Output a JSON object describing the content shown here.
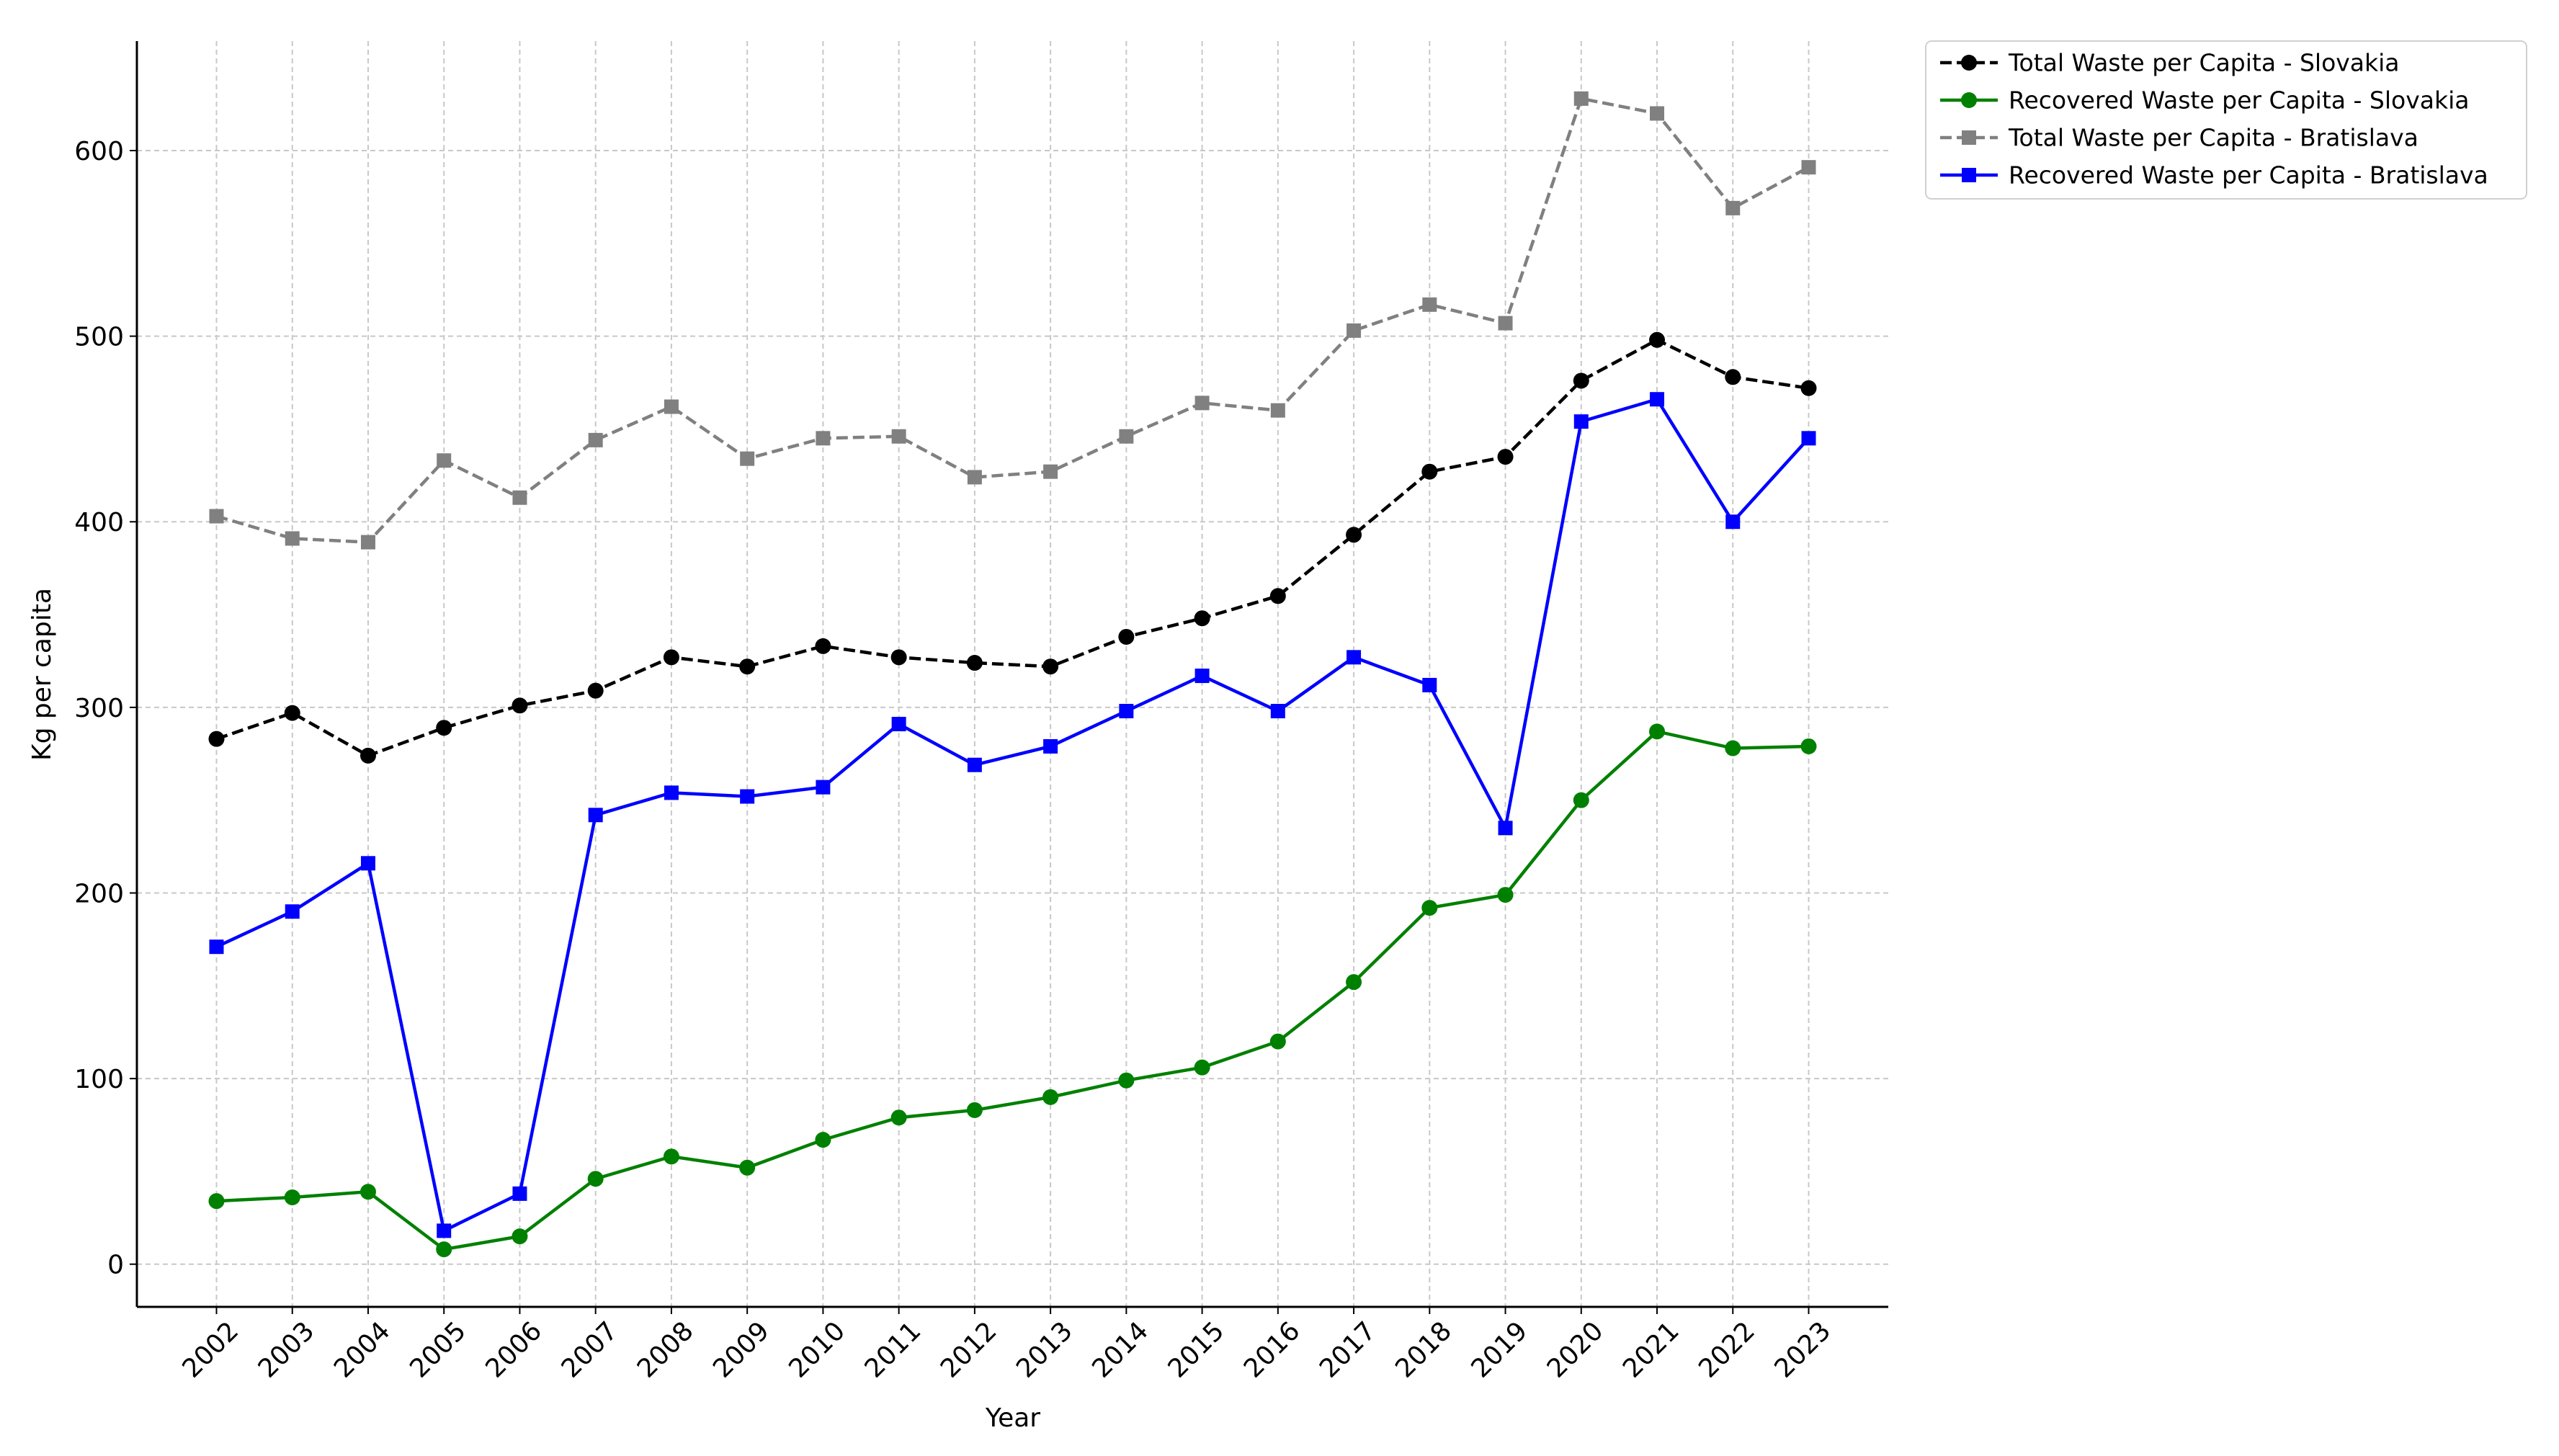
{
  "chart_data": {
    "type": "line",
    "x_label": "Year",
    "y_label": "Kg per capita",
    "x": [
      2002,
      2003,
      2004,
      2005,
      2006,
      2007,
      2008,
      2009,
      2010,
      2011,
      2012,
      2013,
      2014,
      2015,
      2016,
      2017,
      2018,
      2019,
      2020,
      2021,
      2022,
      2023
    ],
    "xlim": [
      2000.95,
      2024.05
    ],
    "xticks": [
      2002,
      2003,
      2004,
      2005,
      2006,
      2007,
      2008,
      2009,
      2010,
      2011,
      2012,
      2013,
      2014,
      2015,
      2016,
      2017,
      2018,
      2019,
      2020,
      2021,
      2022,
      2023
    ],
    "ylim": [
      -23,
      659
    ],
    "yticks": [
      0,
      100,
      200,
      300,
      400,
      500,
      600
    ],
    "grid": true,
    "legend": "outside-upper-right",
    "series": [
      {
        "name": "Total Waste per Capita - Slovakia",
        "color": "#000000",
        "linestyle": "dashed",
        "marker": "circle",
        "values": [
          283,
          297,
          274,
          289,
          301,
          309,
          327,
          322,
          333,
          327,
          324,
          322,
          338,
          348,
          360,
          393,
          427,
          435,
          476,
          498,
          478,
          472
        ]
      },
      {
        "name": "Recovered Waste per Capita - Slovakia",
        "color": "#008000",
        "linestyle": "solid",
        "marker": "circle",
        "values": [
          34,
          36,
          39,
          8,
          15,
          46,
          58,
          52,
          67,
          79,
          83,
          90,
          99,
          106,
          120,
          152,
          192,
          199,
          250,
          287,
          278,
          279
        ]
      },
      {
        "name": "Total Waste per Capita - Bratislava",
        "color": "#808080",
        "linestyle": "dashed",
        "marker": "square",
        "values": [
          403,
          391,
          389,
          433,
          413,
          444,
          462,
          434,
          445,
          446,
          424,
          427,
          446,
          464,
          460,
          503,
          517,
          507,
          628,
          620,
          569,
          591
        ]
      },
      {
        "name": "Recovered Waste per Capita - Bratislava",
        "color": "#0000ff",
        "linestyle": "solid",
        "marker": "square",
        "values": [
          171,
          190,
          216,
          18,
          38,
          242,
          254,
          252,
          257,
          291,
          269,
          279,
          298,
          317,
          298,
          327,
          312,
          235,
          454,
          466,
          400,
          445
        ]
      }
    ]
  }
}
